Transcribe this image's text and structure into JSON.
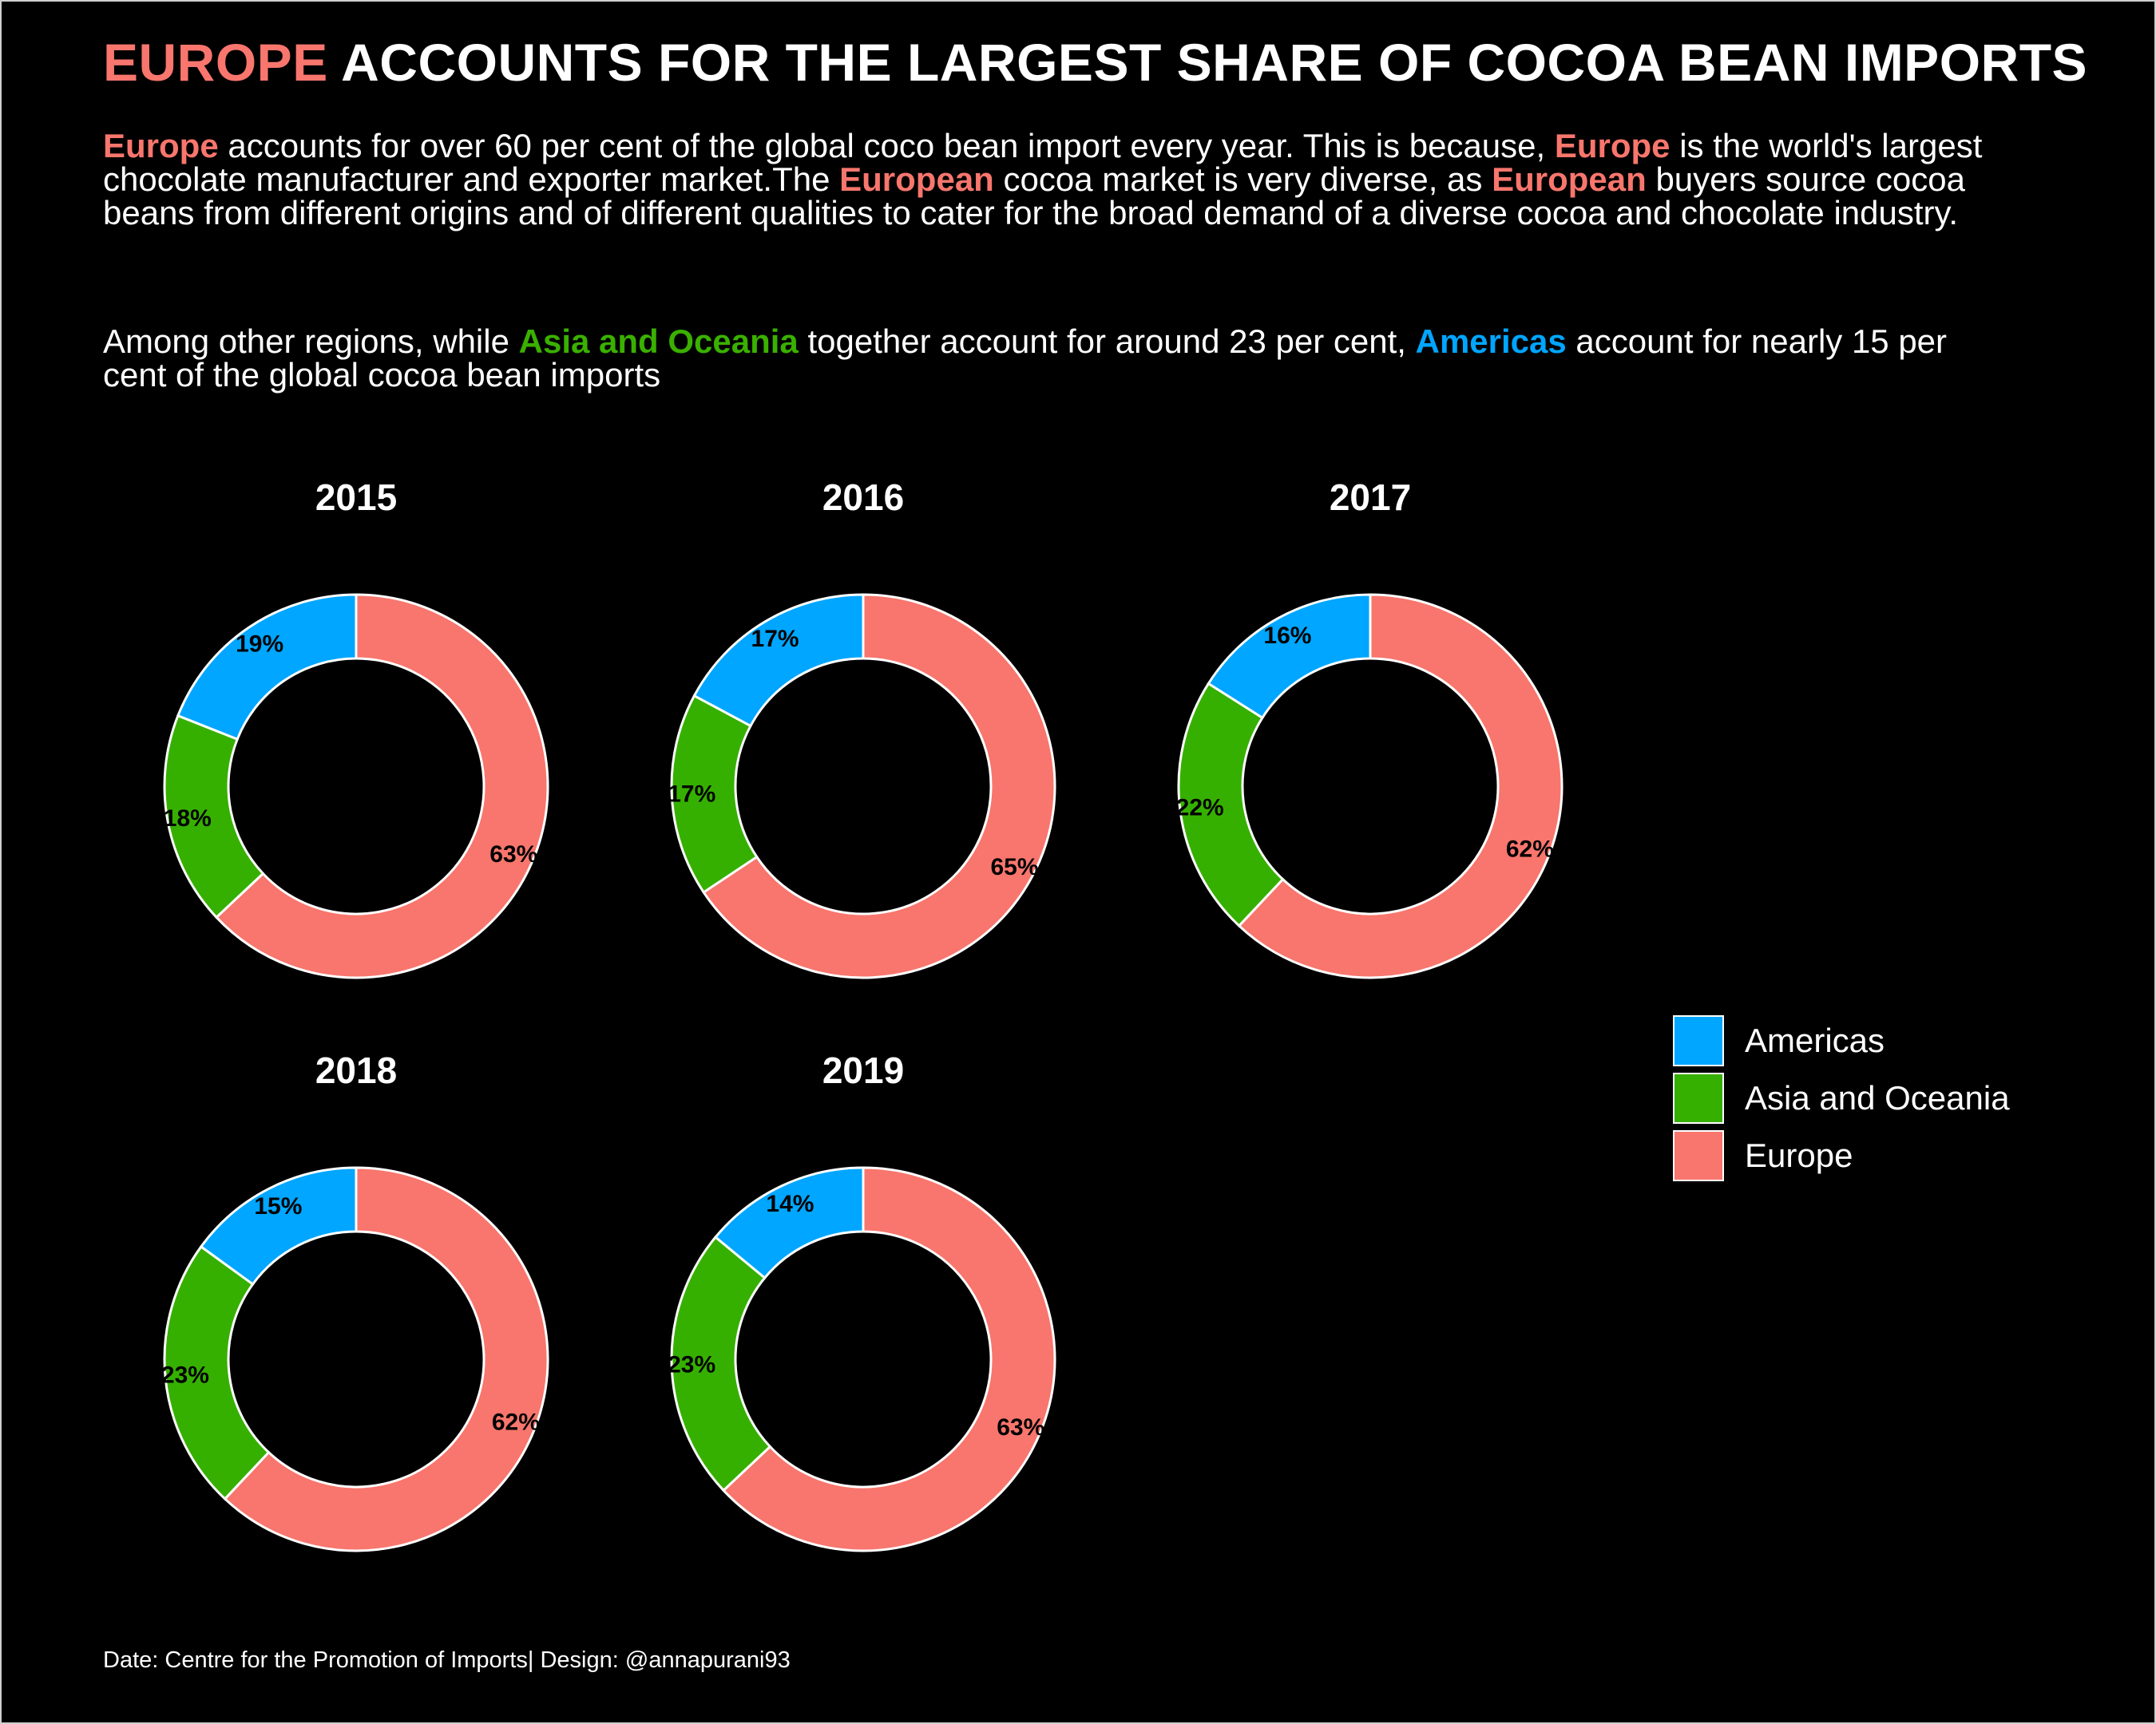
{
  "header": {
    "title_highlight": "EUROPE",
    "title_rest": " ACCOUNTS FOR THE LARGEST SHARE OF COCOA BEAN IMPORTS",
    "para1": [
      {
        "text": "Europe ",
        "style": "europe"
      },
      {
        "text": " accounts for over 60 per cent of the global coco bean import every year. This is because, ",
        "style": "plain"
      },
      {
        "text": "Europe ",
        "style": "europe"
      },
      {
        "text": " is the world's largest chocolate manufacturer and exporter market.The ",
        "style": "plain"
      },
      {
        "text": "European ",
        "style": "europe"
      },
      {
        "text": " cocoa market is very diverse, as ",
        "style": "plain"
      },
      {
        "text": "European ",
        "style": "europe"
      },
      {
        "text": " buyers source cocoa beans from different origins and of different qualities to cater for the broad demand of a diverse cocoa and chocolate industry.",
        "style": "plain"
      }
    ],
    "para2": [
      {
        "text": "Among other regions, while ",
        "style": "plain"
      },
      {
        "text": "Asia and Oceania ",
        "style": "asia"
      },
      {
        "text": " together account for around 23 per cent, ",
        "style": "plain"
      },
      {
        "text": "Americas ",
        "style": "americas"
      },
      {
        "text": " account for nearly 15 per cent of the global cocoa bean imports",
        "style": "plain"
      }
    ]
  },
  "colors": {
    "Americas": "#00a6ff",
    "Asia and Oceania": "#36b000",
    "Europe": "#f8766d",
    "background": "#000000",
    "text": "#ffffff"
  },
  "legend": {
    "items": [
      {
        "label": "Americas"
      },
      {
        "label": "Asia and Oceania"
      },
      {
        "label": "Europe"
      }
    ]
  },
  "chart_data": [
    {
      "type": "donut",
      "title": "2015",
      "categories": [
        "Europe",
        "Asia and Oceania",
        "Americas"
      ],
      "values": [
        63,
        18,
        19
      ],
      "labels": [
        "63%",
        "18%",
        "19%"
      ]
    },
    {
      "type": "donut",
      "title": "2016",
      "categories": [
        "Europe",
        "Asia and Oceania",
        "Americas"
      ],
      "values": [
        65,
        17,
        17
      ],
      "labels": [
        "65%",
        "17%",
        "17%"
      ]
    },
    {
      "type": "donut",
      "title": "2017",
      "categories": [
        "Europe",
        "Asia and Oceania",
        "Americas"
      ],
      "values": [
        62,
        22,
        16
      ],
      "labels": [
        "62%",
        "22%",
        "16%"
      ]
    },
    {
      "type": "donut",
      "title": "2018",
      "categories": [
        "Europe",
        "Asia and Oceania",
        "Americas"
      ],
      "values": [
        62,
        23,
        15
      ],
      "labels": [
        "62%",
        "23%",
        "15%"
      ]
    },
    {
      "type": "donut",
      "title": "2019",
      "categories": [
        "Europe",
        "Asia and Oceania",
        "Americas"
      ],
      "values": [
        63,
        23,
        14
      ],
      "labels": [
        "63%",
        "23%",
        "14%"
      ]
    }
  ],
  "caption": "Date: Centre for the Promotion of Imports| Design: @annapurani93"
}
